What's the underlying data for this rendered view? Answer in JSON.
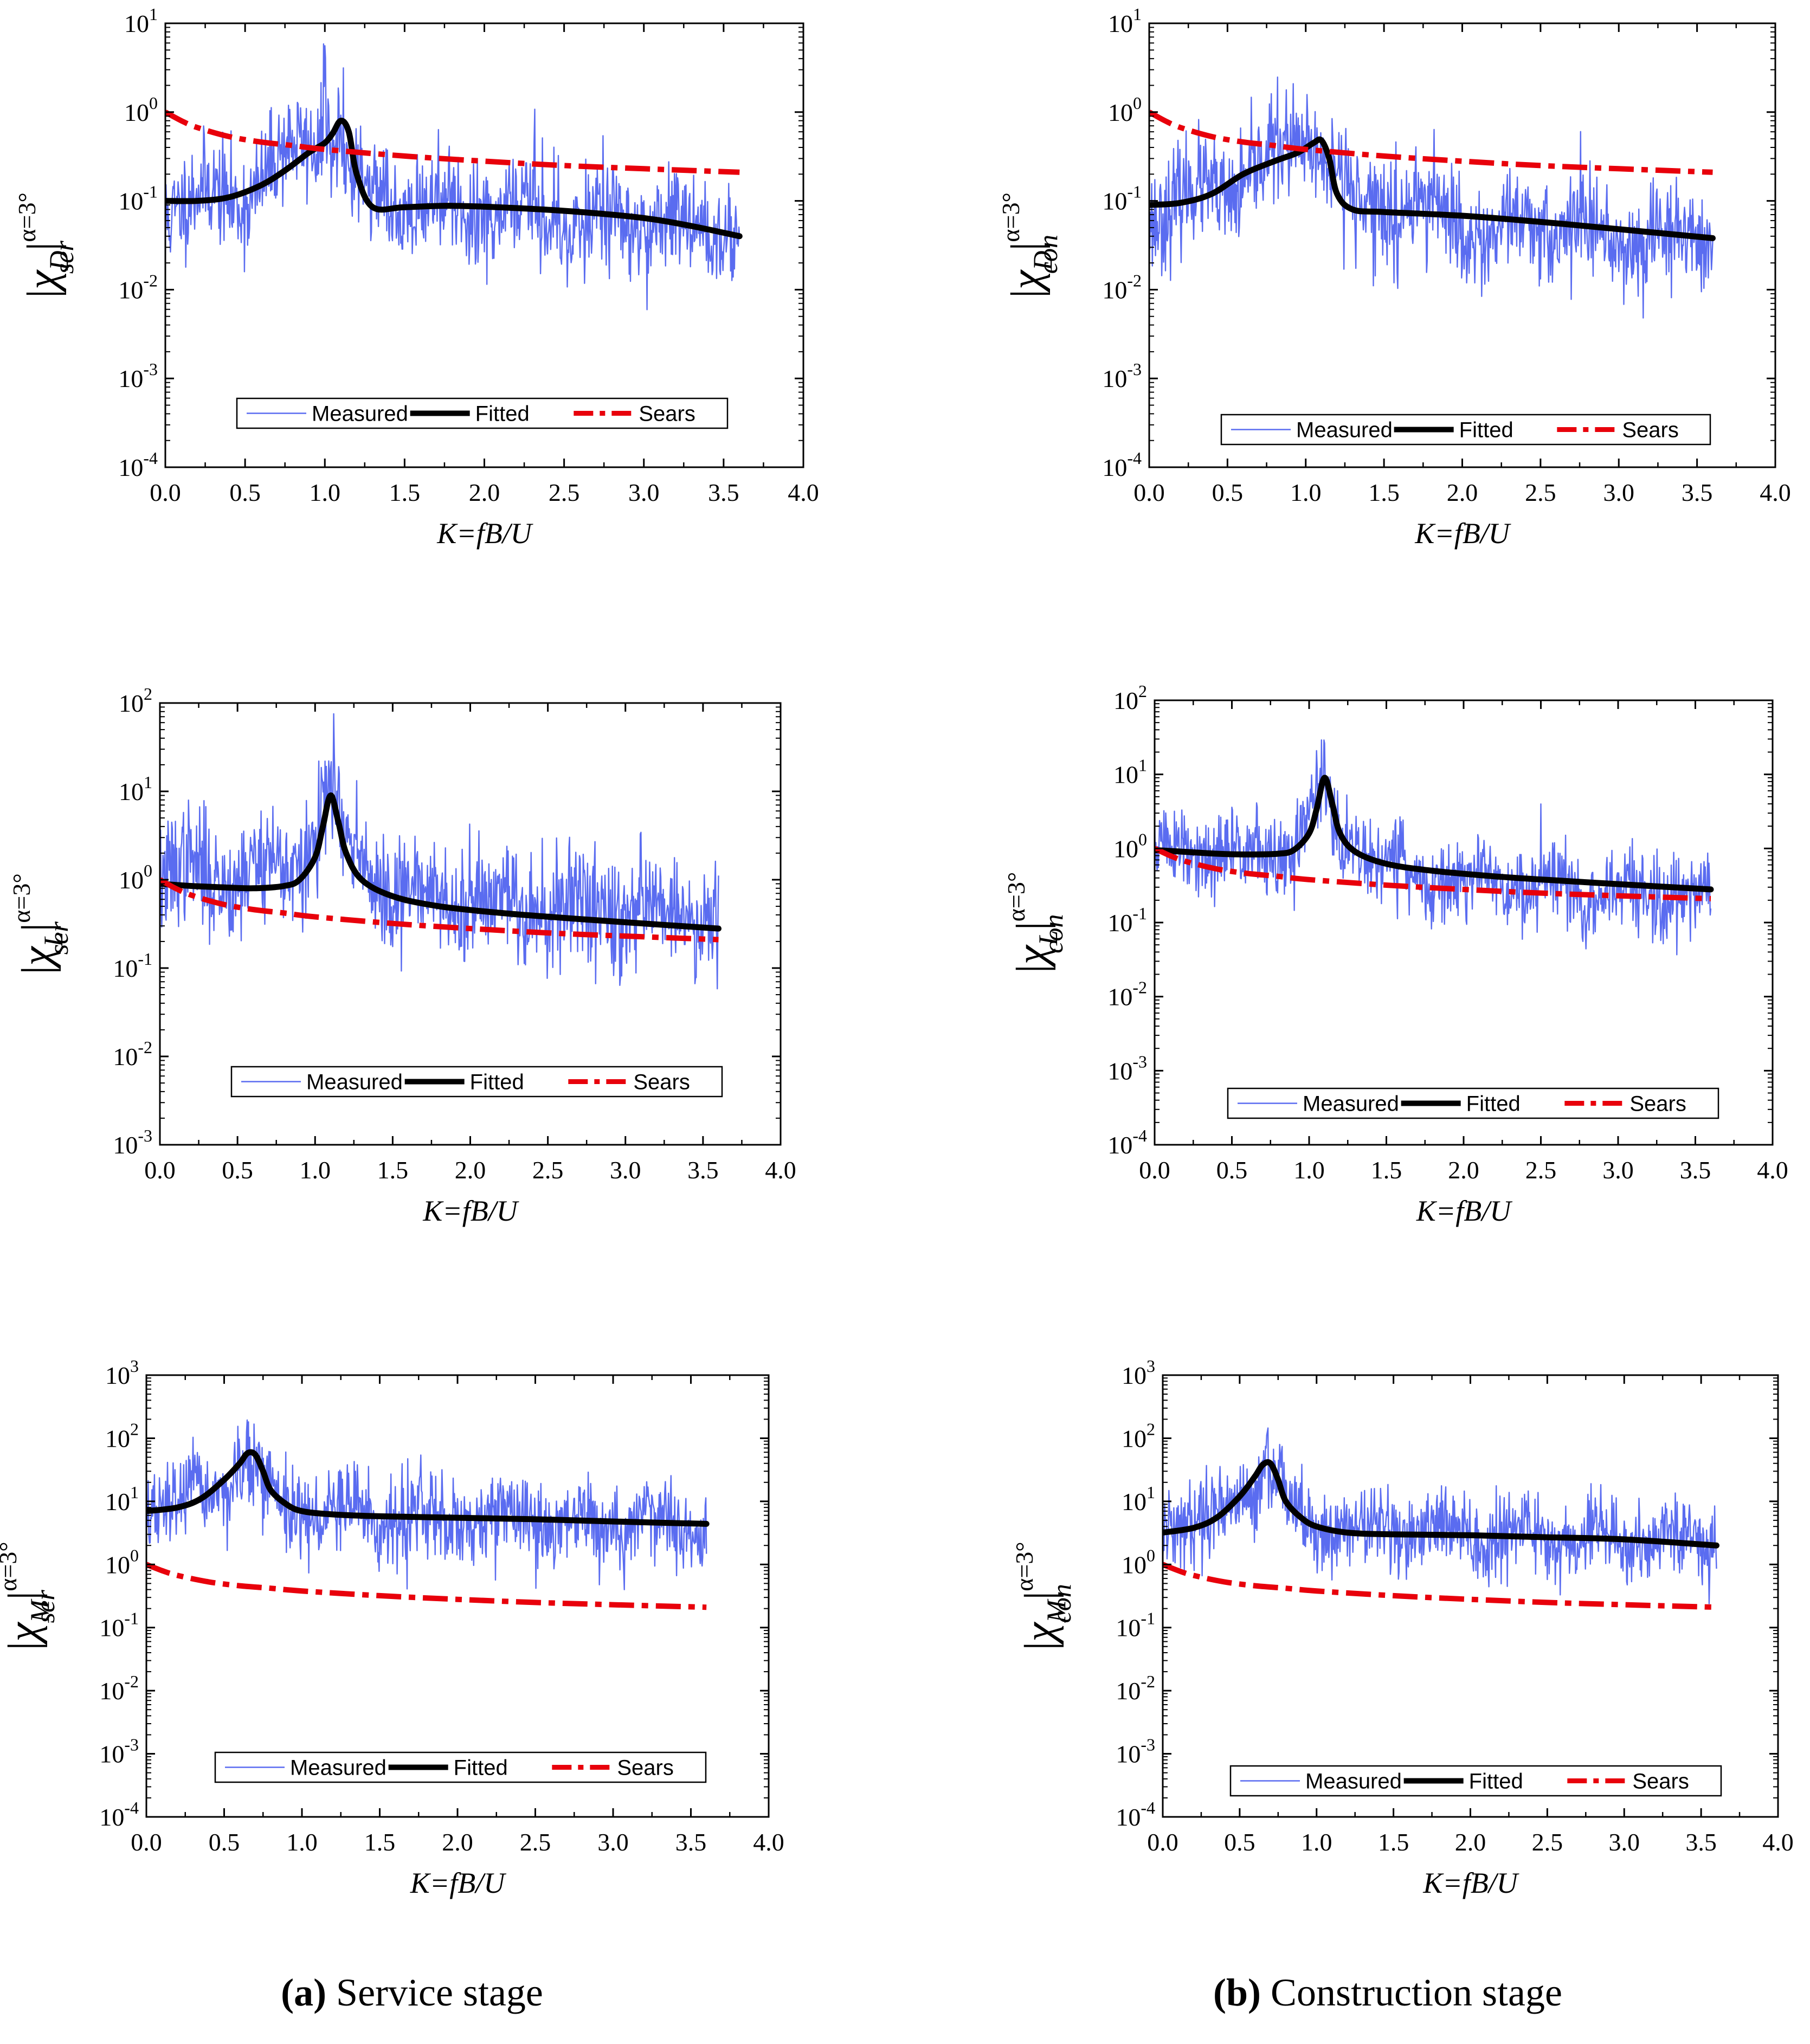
{
  "figure": {
    "captions": [
      {
        "letter": "(a)",
        "text": " Service stage"
      },
      {
        "letter": "(b)",
        "text": " Construction stage"
      }
    ]
  },
  "colors": {
    "measured": "#5a6cf0",
    "fitted": "#000000",
    "sears": "#e8000b"
  },
  "chart_data": [
    {
      "type": "line",
      "id": "D-ser",
      "title": "",
      "xlabel": "K=fB/U",
      "ylabel": {
        "chi": "χ",
        "sub": "D",
        "stage": "ser",
        "sup": "α=3°"
      },
      "yscale": "log",
      "xlim": [
        0,
        4
      ],
      "ylim_exp": [
        -4,
        1
      ],
      "x_ticks": [
        "0.0",
        "0.5",
        "1.0",
        "1.5",
        "2.0",
        "2.5",
        "3.0",
        "3.5",
        "4.0"
      ],
      "y_ticks": [
        {
          "base": "10",
          "exp": "-4"
        },
        {
          "base": "10",
          "exp": "-3"
        },
        {
          "base": "10",
          "exp": "-2"
        },
        {
          "base": "10",
          "exp": "-1"
        },
        {
          "base": "10",
          "exp": "0"
        },
        {
          "base": "10",
          "exp": "1"
        }
      ],
      "legend": [
        "Measured",
        "Fitted",
        "Sears"
      ],
      "series": [
        {
          "name": "Measured",
          "style": "noisy",
          "x_max": 3.6,
          "trend": [
            [
              0,
              0.09
            ],
            [
              0.5,
              0.12
            ],
            [
              0.8,
              0.35
            ],
            [
              1.0,
              0.6
            ],
            [
              1.1,
              0.5
            ],
            [
              1.2,
              0.12
            ],
            [
              1.6,
              0.09
            ],
            [
              2.2,
              0.07
            ],
            [
              3.0,
              0.06
            ],
            [
              3.6,
              0.05
            ]
          ],
          "seed": 11,
          "amp": 0.9,
          "peaks": [
            [
              1.0,
              6
            ],
            [
              1.12,
              4
            ]
          ]
        },
        {
          "name": "Fitted",
          "x": [
            0,
            0.2,
            0.4,
            0.6,
            0.75,
            0.9,
            1.0,
            1.05,
            1.1,
            1.15,
            1.2,
            1.3,
            1.5,
            1.8,
            2.2,
            2.6,
            3.0,
            3.3,
            3.6
          ],
          "y": [
            0.1,
            0.1,
            0.11,
            0.15,
            0.22,
            0.35,
            0.45,
            0.58,
            0.8,
            0.6,
            0.2,
            0.085,
            0.085,
            0.088,
            0.083,
            0.075,
            0.064,
            0.052,
            0.04
          ]
        },
        {
          "name": "Sears",
          "x": [
            0,
            0.1,
            0.2,
            0.4,
            0.6,
            0.8,
            1.0,
            1.5,
            2.0,
            2.5,
            3.0,
            3.6
          ],
          "y": [
            1.0,
            0.8,
            0.67,
            0.53,
            0.46,
            0.42,
            0.38,
            0.32,
            0.28,
            0.25,
            0.23,
            0.21
          ]
        }
      ]
    },
    {
      "type": "line",
      "id": "D-con",
      "title": "",
      "xlabel": "K=fB/U",
      "ylabel": {
        "chi": "χ",
        "sub": "D",
        "stage": "con",
        "sup": "α=3°"
      },
      "yscale": "log",
      "xlim": [
        0,
        4
      ],
      "ylim_exp": [
        -4,
        1
      ],
      "x_ticks": [
        "0.0",
        "0.5",
        "1.0",
        "1.5",
        "2.0",
        "2.5",
        "3.0",
        "3.5",
        "4.0"
      ],
      "y_ticks": [
        {
          "base": "10",
          "exp": "-4"
        },
        {
          "base": "10",
          "exp": "-3"
        },
        {
          "base": "10",
          "exp": "-2"
        },
        {
          "base": "10",
          "exp": "-1"
        },
        {
          "base": "10",
          "exp": "0"
        },
        {
          "base": "10",
          "exp": "1"
        }
      ],
      "legend": [
        "Measured",
        "Fitted",
        "Sears"
      ],
      "series": [
        {
          "name": "Measured",
          "style": "noisy",
          "x_max": 3.6,
          "trend": [
            [
              0,
              0.08
            ],
            [
              0.5,
              0.13
            ],
            [
              0.8,
              0.3
            ],
            [
              1.0,
              0.5
            ],
            [
              1.15,
              0.35
            ],
            [
              1.3,
              0.09
            ],
            [
              2.0,
              0.06
            ],
            [
              3.0,
              0.04
            ],
            [
              3.6,
              0.035
            ]
          ],
          "seed": 23,
          "amp": 0.9,
          "peaks": [
            [
              1.1,
              1.5
            ]
          ]
        },
        {
          "name": "Fitted",
          "x": [
            0,
            0.2,
            0.4,
            0.6,
            0.8,
            0.95,
            1.05,
            1.1,
            1.15,
            1.2,
            1.3,
            1.5,
            2.0,
            2.5,
            3.0,
            3.6
          ],
          "y": [
            0.09,
            0.095,
            0.12,
            0.2,
            0.28,
            0.35,
            0.45,
            0.48,
            0.3,
            0.12,
            0.08,
            0.075,
            0.068,
            0.058,
            0.048,
            0.038
          ]
        },
        {
          "name": "Sears",
          "x": [
            0,
            0.1,
            0.2,
            0.4,
            0.6,
            0.8,
            1.0,
            1.5,
            2.0,
            2.5,
            3.0,
            3.6
          ],
          "y": [
            1.0,
            0.8,
            0.67,
            0.53,
            0.46,
            0.42,
            0.38,
            0.32,
            0.28,
            0.25,
            0.23,
            0.21
          ]
        }
      ]
    },
    {
      "type": "line",
      "id": "L-ser",
      "title": "",
      "xlabel": "K=fB/U",
      "ylabel": {
        "chi": "χ",
        "sub": "L",
        "stage": "ser",
        "sup": "α=3°"
      },
      "yscale": "log",
      "xlim": [
        0,
        4
      ],
      "ylim_exp": [
        -3,
        2
      ],
      "x_ticks": [
        "0.0",
        "0.5",
        "1.0",
        "1.5",
        "2.0",
        "2.5",
        "3.0",
        "3.5",
        "4.0"
      ],
      "y_ticks": [
        {
          "base": "10",
          "exp": "-3"
        },
        {
          "base": "10",
          "exp": "-2"
        },
        {
          "base": "10",
          "exp": "-1"
        },
        {
          "base": "10",
          "exp": "0"
        },
        {
          "base": "10",
          "exp": "1"
        },
        {
          "base": "10",
          "exp": "2"
        }
      ],
      "legend": [
        "Measured",
        "Fitted",
        "Sears"
      ],
      "series": [
        {
          "name": "Measured",
          "style": "noisy",
          "x_max": 3.6,
          "trend": [
            [
              0,
              1.1
            ],
            [
              0.5,
              1.2
            ],
            [
              0.9,
              1.5
            ],
            [
              1.05,
              6
            ],
            [
              1.1,
              8
            ],
            [
              1.2,
              2.0
            ],
            [
              1.6,
              0.6
            ],
            [
              2.5,
              0.5
            ],
            [
              3.6,
              0.45
            ]
          ],
          "seed": 37,
          "amp": 1.0,
          "peaks": [
            [
              1.1,
              25
            ],
            [
              3.1,
              4
            ]
          ]
        },
        {
          "name": "Fitted",
          "x": [
            0,
            0.2,
            0.4,
            0.6,
            0.8,
            0.9,
            1.0,
            1.05,
            1.1,
            1.15,
            1.2,
            1.3,
            1.5,
            1.8,
            2.2,
            2.6,
            3.0,
            3.6
          ],
          "y": [
            0.9,
            0.85,
            0.82,
            0.8,
            0.85,
            1.0,
            1.8,
            4.0,
            9.0,
            4.5,
            2.0,
            1.0,
            0.65,
            0.5,
            0.42,
            0.37,
            0.33,
            0.28
          ]
        },
        {
          "name": "Sears",
          "x": [
            0,
            0.1,
            0.2,
            0.4,
            0.6,
            0.8,
            1.0,
            1.5,
            2.0,
            2.5,
            3.0,
            3.6
          ],
          "y": [
            1.0,
            0.8,
            0.67,
            0.53,
            0.46,
            0.42,
            0.38,
            0.32,
            0.28,
            0.25,
            0.23,
            0.21
          ]
        }
      ]
    },
    {
      "type": "line",
      "id": "L-con",
      "title": "",
      "xlabel": "K=fB/U",
      "ylabel": {
        "chi": "χ",
        "sub": "L",
        "stage": "con",
        "sup": "α=3°"
      },
      "yscale": "log",
      "xlim": [
        0,
        4
      ],
      "ylim_exp": [
        -4,
        2
      ],
      "x_ticks": [
        "0.0",
        "0.5",
        "1.0",
        "1.5",
        "2.0",
        "2.5",
        "3.0",
        "3.5",
        "4.0"
      ],
      "y_ticks": [
        {
          "base": "10",
          "exp": "-4"
        },
        {
          "base": "10",
          "exp": "-3"
        },
        {
          "base": "10",
          "exp": "-2"
        },
        {
          "base": "10",
          "exp": "-1"
        },
        {
          "base": "10",
          "exp": "0"
        },
        {
          "base": "10",
          "exp": "1"
        },
        {
          "base": "10",
          "exp": "2"
        }
      ],
      "legend": [
        "Measured",
        "Fitted",
        "Sears"
      ],
      "series": [
        {
          "name": "Measured",
          "style": "noisy",
          "x_max": 3.6,
          "trend": [
            [
              0,
              0.9
            ],
            [
              0.5,
              0.8
            ],
            [
              0.9,
              0.9
            ],
            [
              1.05,
              5
            ],
            [
              1.1,
              7
            ],
            [
              1.2,
              1.5
            ],
            [
              1.6,
              0.45
            ],
            [
              2.5,
              0.3
            ],
            [
              3.6,
              0.25
            ]
          ],
          "seed": 51,
          "amp": 0.9,
          "peaks": [
            [
              1.1,
              30
            ]
          ]
        },
        {
          "name": "Fitted",
          "x": [
            0,
            0.2,
            0.4,
            0.6,
            0.8,
            0.9,
            1.0,
            1.05,
            1.1,
            1.15,
            1.2,
            1.3,
            1.5,
            1.8,
            2.2,
            2.6,
            3.0,
            3.6
          ],
          "y": [
            0.95,
            0.9,
            0.85,
            0.83,
            0.85,
            0.95,
            1.6,
            3.5,
            9.0,
            4.0,
            1.6,
            0.9,
            0.62,
            0.5,
            0.42,
            0.37,
            0.33,
            0.28
          ]
        },
        {
          "name": "Sears",
          "x": [
            0,
            0.1,
            0.2,
            0.4,
            0.6,
            0.8,
            1.0,
            1.5,
            2.0,
            2.5,
            3.0,
            3.6
          ],
          "y": [
            1.0,
            0.8,
            0.67,
            0.53,
            0.46,
            0.42,
            0.38,
            0.32,
            0.28,
            0.25,
            0.23,
            0.21
          ]
        }
      ]
    },
    {
      "type": "line",
      "id": "M-ser",
      "title": "",
      "xlabel": "K=fB/U",
      "ylabel": {
        "chi": "χ",
        "sub": "M",
        "stage": "ser",
        "sup": "α=3°"
      },
      "yscale": "log",
      "xlim": [
        0,
        4
      ],
      "ylim_exp": [
        -4,
        3
      ],
      "x_ticks": [
        "0.0",
        "0.5",
        "1.0",
        "1.5",
        "2.0",
        "2.5",
        "3.0",
        "3.5",
        "4.0"
      ],
      "y_ticks": [
        {
          "base": "10",
          "exp": "-4"
        },
        {
          "base": "10",
          "exp": "-3"
        },
        {
          "base": "10",
          "exp": "-2"
        },
        {
          "base": "10",
          "exp": "-1"
        },
        {
          "base": "10",
          "exp": "0"
        },
        {
          "base": "10",
          "exp": "1"
        },
        {
          "base": "10",
          "exp": "2"
        },
        {
          "base": "10",
          "exp": "3"
        }
      ],
      "legend": [
        "Measured",
        "Fitted",
        "Sears"
      ],
      "series": [
        {
          "name": "Measured",
          "style": "noisy",
          "x_max": 3.6,
          "trend": [
            [
              0,
              8
            ],
            [
              0.4,
              12
            ],
            [
              0.6,
              30
            ],
            [
              0.7,
              45
            ],
            [
              0.8,
              12
            ],
            [
              1.0,
              6
            ],
            [
              2.0,
              5
            ],
            [
              3.0,
              4.5
            ],
            [
              3.6,
              4
            ]
          ],
          "seed": 67,
          "amp": 1.0,
          "peaks": [
            [
              0.65,
              200
            ]
          ]
        },
        {
          "name": "Fitted",
          "x": [
            0,
            0.2,
            0.35,
            0.5,
            0.6,
            0.65,
            0.7,
            0.75,
            0.8,
            0.9,
            1.0,
            1.2,
            1.5,
            2.0,
            2.5,
            3.0,
            3.6
          ],
          "y": [
            7,
            8,
            11,
            22,
            40,
            58,
            55,
            30,
            15,
            9,
            7,
            6.2,
            5.8,
            5.5,
            5.2,
            4.8,
            4.4
          ]
        },
        {
          "name": "Sears",
          "x": [
            0,
            0.1,
            0.2,
            0.4,
            0.6,
            0.8,
            1.0,
            1.5,
            2.0,
            2.5,
            3.0,
            3.6
          ],
          "y": [
            1.0,
            0.8,
            0.67,
            0.53,
            0.46,
            0.42,
            0.38,
            0.32,
            0.28,
            0.25,
            0.23,
            0.21
          ]
        }
      ]
    },
    {
      "type": "line",
      "id": "M-con",
      "title": "",
      "xlabel": "K=fB/U",
      "ylabel": {
        "chi": "χ",
        "sub": "M",
        "stage": "con",
        "sup": "α=3°"
      },
      "yscale": "log",
      "xlim": [
        0,
        4
      ],
      "ylim_exp": [
        -4,
        3
      ],
      "x_ticks": [
        "0.0",
        "0.5",
        "1.0",
        "1.5",
        "2.0",
        "2.5",
        "3.0",
        "3.5",
        "4.0"
      ],
      "y_ticks": [
        {
          "base": "10",
          "exp": "-4"
        },
        {
          "base": "10",
          "exp": "-3"
        },
        {
          "base": "10",
          "exp": "-2"
        },
        {
          "base": "10",
          "exp": "-1"
        },
        {
          "base": "10",
          "exp": "0"
        },
        {
          "base": "10",
          "exp": "1"
        },
        {
          "base": "10",
          "exp": "2"
        },
        {
          "base": "10",
          "exp": "3"
        }
      ],
      "legend": [
        "Measured",
        "Fitted",
        "Sears"
      ],
      "series": [
        {
          "name": "Measured",
          "style": "noisy",
          "x_max": 3.6,
          "trend": [
            [
              0,
              4
            ],
            [
              0.4,
              7
            ],
            [
              0.6,
              20
            ],
            [
              0.7,
              35
            ],
            [
              0.8,
              10
            ],
            [
              1.0,
              4
            ],
            [
              2.0,
              3
            ],
            [
              3.0,
              2.6
            ],
            [
              3.6,
              2.2
            ]
          ],
          "seed": 79,
          "amp": 1.0,
          "peaks": [
            [
              0.68,
              180
            ]
          ]
        },
        {
          "name": "Fitted",
          "x": [
            0,
            0.2,
            0.35,
            0.5,
            0.6,
            0.65,
            0.7,
            0.75,
            0.8,
            0.9,
            1.0,
            1.2,
            1.5,
            2.0,
            2.5,
            3.0,
            3.6
          ],
          "y": [
            3.2,
            3.8,
            5.5,
            12,
            25,
            38,
            40,
            22,
            10,
            5.5,
            4,
            3.2,
            3.0,
            2.9,
            2.7,
            2.5,
            2.0
          ]
        },
        {
          "name": "Sears",
          "x": [
            0,
            0.1,
            0.2,
            0.4,
            0.6,
            0.8,
            1.0,
            1.5,
            2.0,
            2.5,
            3.0,
            3.6
          ],
          "y": [
            1.0,
            0.8,
            0.67,
            0.53,
            0.46,
            0.42,
            0.38,
            0.32,
            0.28,
            0.25,
            0.23,
            0.21
          ]
        }
      ]
    }
  ]
}
